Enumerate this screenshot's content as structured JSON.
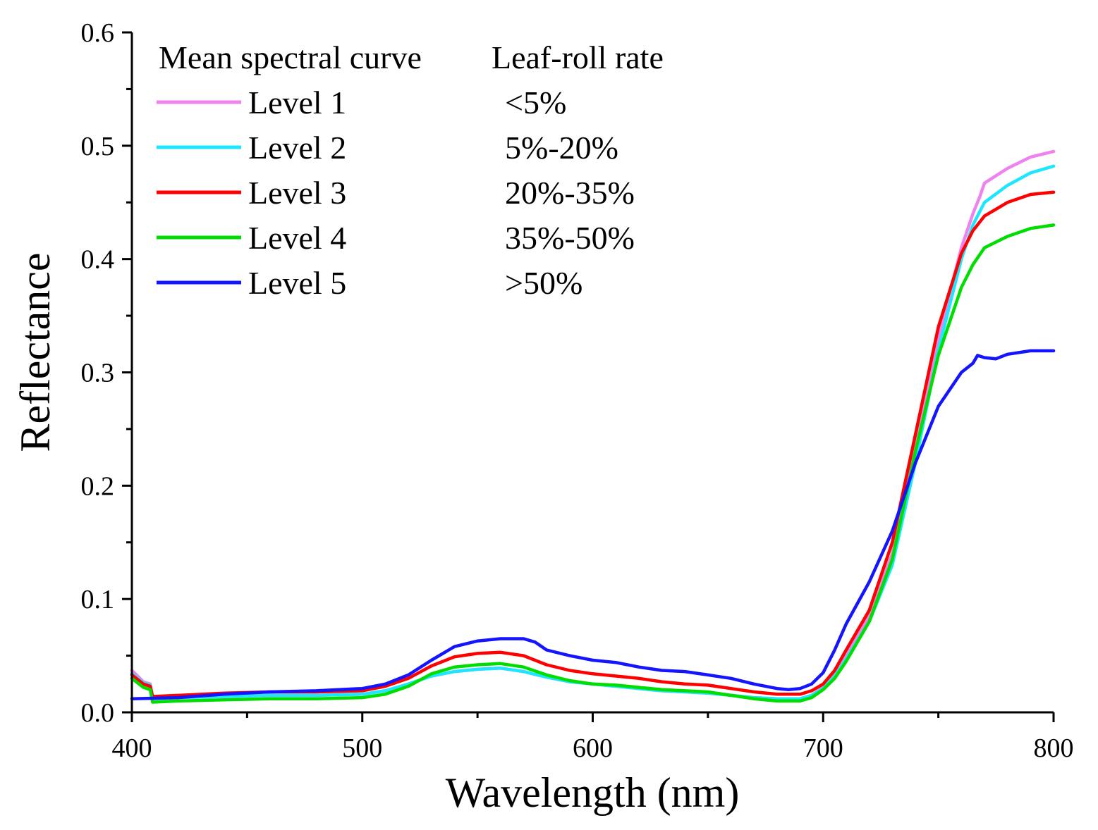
{
  "chart_data": {
    "type": "line",
    "title": "",
    "xlabel": "Wavelength (nm)",
    "ylabel": "Reflectance",
    "xlim": [
      400,
      800
    ],
    "ylim": [
      0.0,
      0.6
    ],
    "x_ticks": [
      400,
      500,
      600,
      700,
      800
    ],
    "x_tick_labels": [
      "400",
      "500",
      "600",
      "700",
      "800"
    ],
    "y_ticks": [
      0.0,
      0.1,
      0.2,
      0.3,
      0.4,
      0.5,
      0.6
    ],
    "y_tick_labels": [
      "0.0",
      "0.1",
      "0.2",
      "0.3",
      "0.4",
      "0.5",
      "0.6"
    ],
    "grid": false,
    "legend": {
      "placement": "top-left",
      "header_series": "Mean spectral curve",
      "header_rate": "Leaf-roll rate"
    },
    "series": [
      {
        "name": "Level 1",
        "rate": "<5%",
        "color": "#ee82ee",
        "x": [
          400,
          405,
          408,
          409,
          420,
          440,
          460,
          480,
          500,
          510,
          520,
          530,
          540,
          550,
          560,
          570,
          580,
          590,
          600,
          610,
          620,
          630,
          640,
          650,
          660,
          670,
          680,
          690,
          695,
          700,
          705,
          710,
          720,
          730,
          740,
          750,
          760,
          765,
          768,
          770,
          780,
          790,
          800
        ],
        "y": [
          0.037,
          0.027,
          0.025,
          0.012,
          0.013,
          0.014,
          0.015,
          0.015,
          0.016,
          0.019,
          0.025,
          0.032,
          0.036,
          0.038,
          0.039,
          0.036,
          0.031,
          0.027,
          0.025,
          0.023,
          0.021,
          0.019,
          0.018,
          0.017,
          0.015,
          0.013,
          0.012,
          0.012,
          0.015,
          0.022,
          0.035,
          0.05,
          0.085,
          0.14,
          0.235,
          0.33,
          0.41,
          0.44,
          0.455,
          0.467,
          0.48,
          0.49,
          0.495
        ]
      },
      {
        "name": "Level 2",
        "rate": "5%-20%",
        "color": "#1ee6ff",
        "x": [
          400,
          405,
          408,
          409,
          420,
          440,
          460,
          480,
          500,
          510,
          520,
          530,
          540,
          550,
          560,
          570,
          580,
          590,
          600,
          610,
          620,
          630,
          640,
          650,
          660,
          670,
          680,
          690,
          695,
          700,
          705,
          710,
          720,
          730,
          740,
          750,
          760,
          765,
          770,
          780,
          790,
          800
        ],
        "y": [
          0.034,
          0.026,
          0.024,
          0.012,
          0.013,
          0.014,
          0.015,
          0.015,
          0.016,
          0.019,
          0.025,
          0.032,
          0.036,
          0.038,
          0.039,
          0.036,
          0.031,
          0.027,
          0.025,
          0.023,
          0.021,
          0.019,
          0.018,
          0.017,
          0.015,
          0.013,
          0.012,
          0.012,
          0.015,
          0.021,
          0.032,
          0.047,
          0.08,
          0.13,
          0.22,
          0.32,
          0.4,
          0.43,
          0.45,
          0.465,
          0.476,
          0.482
        ]
      },
      {
        "name": "Level 3",
        "rate": "20%-35%",
        "color": "#ff0000",
        "x": [
          400,
          405,
          408,
          409,
          420,
          440,
          460,
          480,
          500,
          510,
          520,
          530,
          540,
          550,
          560,
          570,
          580,
          590,
          600,
          610,
          620,
          630,
          640,
          650,
          660,
          670,
          680,
          690,
          695,
          700,
          705,
          710,
          720,
          730,
          740,
          750,
          760,
          765,
          770,
          780,
          790,
          800
        ],
        "y": [
          0.033,
          0.025,
          0.023,
          0.014,
          0.015,
          0.017,
          0.018,
          0.018,
          0.019,
          0.023,
          0.03,
          0.041,
          0.049,
          0.052,
          0.053,
          0.05,
          0.042,
          0.037,
          0.034,
          0.032,
          0.03,
          0.027,
          0.025,
          0.024,
          0.021,
          0.018,
          0.016,
          0.016,
          0.019,
          0.025,
          0.037,
          0.055,
          0.09,
          0.15,
          0.245,
          0.34,
          0.405,
          0.425,
          0.438,
          0.45,
          0.457,
          0.459
        ]
      },
      {
        "name": "Level 4",
        "rate": "35%-50%",
        "color": "#00dd00",
        "x": [
          400,
          405,
          408,
          409,
          420,
          440,
          460,
          480,
          500,
          510,
          520,
          530,
          540,
          550,
          560,
          570,
          580,
          590,
          600,
          610,
          620,
          630,
          640,
          650,
          660,
          670,
          680,
          690,
          695,
          700,
          705,
          710,
          720,
          730,
          740,
          750,
          760,
          765,
          770,
          780,
          790,
          800
        ],
        "y": [
          0.03,
          0.022,
          0.02,
          0.009,
          0.01,
          0.011,
          0.012,
          0.012,
          0.013,
          0.016,
          0.023,
          0.034,
          0.04,
          0.042,
          0.043,
          0.04,
          0.033,
          0.028,
          0.025,
          0.024,
          0.022,
          0.02,
          0.019,
          0.018,
          0.015,
          0.012,
          0.01,
          0.01,
          0.013,
          0.02,
          0.03,
          0.045,
          0.08,
          0.135,
          0.23,
          0.315,
          0.375,
          0.395,
          0.41,
          0.42,
          0.427,
          0.43
        ]
      },
      {
        "name": "Level 5",
        "rate": ">50%",
        "color": "#1414ff",
        "x": [
          400,
          420,
          440,
          460,
          480,
          500,
          510,
          520,
          530,
          540,
          550,
          560,
          570,
          575,
          580,
          590,
          600,
          610,
          620,
          630,
          640,
          650,
          660,
          670,
          680,
          685,
          690,
          695,
          700,
          705,
          710,
          720,
          730,
          740,
          750,
          760,
          765,
          767,
          770,
          775,
          780,
          790,
          800
        ],
        "y": [
          0.012,
          0.013,
          0.016,
          0.018,
          0.019,
          0.021,
          0.025,
          0.033,
          0.046,
          0.058,
          0.063,
          0.065,
          0.065,
          0.062,
          0.055,
          0.05,
          0.046,
          0.044,
          0.04,
          0.037,
          0.036,
          0.033,
          0.03,
          0.025,
          0.021,
          0.02,
          0.021,
          0.025,
          0.035,
          0.055,
          0.078,
          0.115,
          0.16,
          0.22,
          0.27,
          0.3,
          0.308,
          0.315,
          0.313,
          0.312,
          0.316,
          0.319,
          0.319
        ]
      }
    ]
  }
}
